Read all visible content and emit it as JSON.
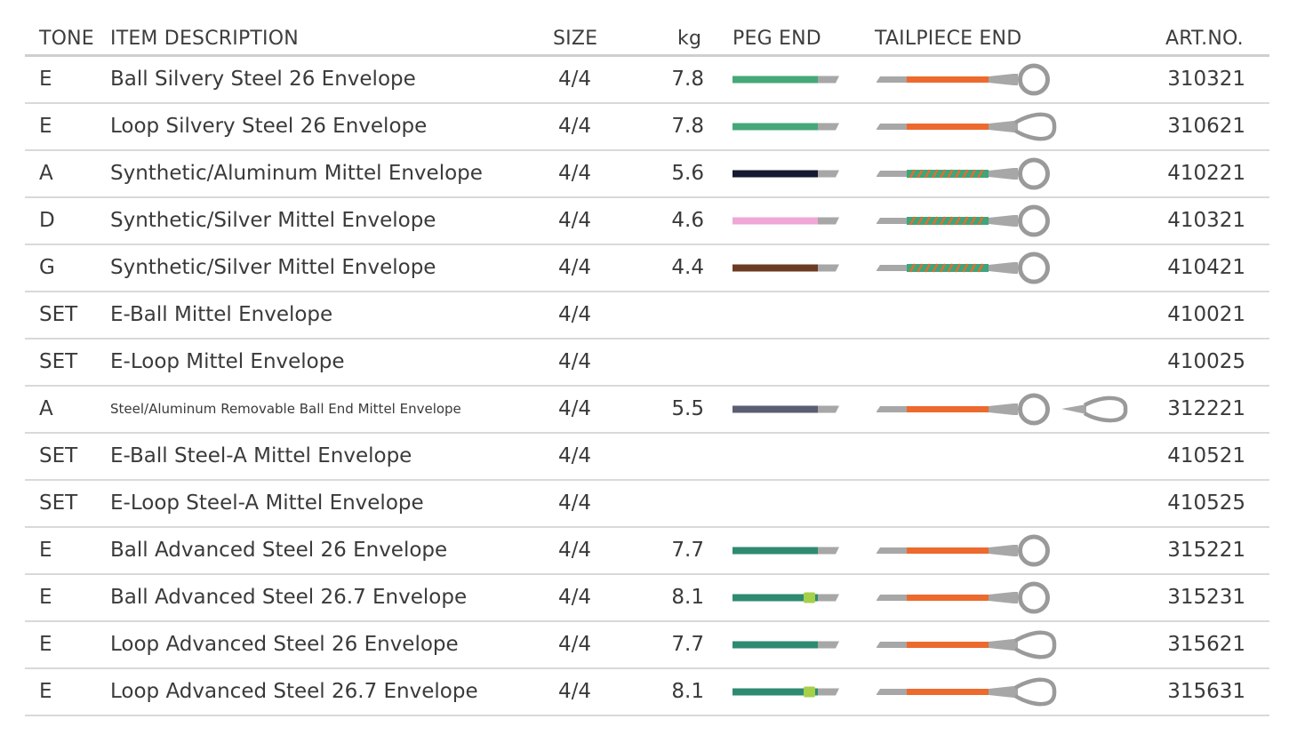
{
  "header": {
    "tone": "TONE",
    "description": "ITEM DESCRIPTION",
    "size": "SIZE",
    "kg": "kg",
    "peg_end": "PEG END",
    "tailpiece_end": "TAILPIECE END",
    "art_no": "ART.NO."
  },
  "colors": {
    "orange": "#ec6a2d",
    "wire_gray": "#a7a7a7",
    "ring_gray": "#9a9a9a",
    "winding_green": "#3fa57a",
    "rule_gray": "#d9d9d9"
  },
  "rows": [
    {
      "tone": "E",
      "description": "Ball Silvery Steel 26 Envelope",
      "size": "4/4",
      "kg": "7.8",
      "art": "310321",
      "peg_color": "#45a878",
      "tail": "ball",
      "wound": false
    },
    {
      "tone": "E",
      "description": "Loop Silvery Steel 26 Envelope",
      "size": "4/4",
      "kg": "7.8",
      "art": "310621",
      "peg_color": "#45a878",
      "tail": "loop",
      "wound": false
    },
    {
      "tone": "A",
      "description": "Synthetic/Aluminum Mittel Envelope",
      "size": "4/4",
      "kg": "5.6",
      "art": "410221",
      "peg_color": "#161a30",
      "tail": "ball",
      "wound": true
    },
    {
      "tone": "D",
      "description": "Synthetic/Silver Mittel Envelope",
      "size": "4/4",
      "kg": "4.6",
      "art": "410321",
      "peg_color": "#efa7d6",
      "tail": "ball",
      "wound": true
    },
    {
      "tone": "G",
      "description": "Synthetic/Silver Mittel Envelope",
      "size": "4/4",
      "kg": "4.4",
      "art": "410421",
      "peg_color": "#6c3b24",
      "tail": "ball",
      "wound": true
    },
    {
      "tone": "SET",
      "description": "E-Ball Mittel Envelope",
      "size": "4/4",
      "kg": "",
      "art": "410021",
      "peg_color": "",
      "tail": "none",
      "wound": false
    },
    {
      "tone": "SET",
      "description": "E-Loop Mittel Envelope",
      "size": "4/4",
      "kg": "",
      "art": "410025",
      "peg_color": "",
      "tail": "none",
      "wound": false
    },
    {
      "tone": "A",
      "description": "Steel/Aluminum Removable Ball End Mittel Envelope",
      "size": "4/4",
      "kg": "5.5",
      "art": "312221",
      "peg_color": "#5b5e72",
      "tail": "ball+loop",
      "wound": false,
      "small": true
    },
    {
      "tone": "SET",
      "description": "E-Ball Steel-A Mittel Envelope",
      "size": "4/4",
      "kg": "",
      "art": "410521",
      "peg_color": "",
      "tail": "none",
      "wound": false
    },
    {
      "tone": "SET",
      "description": "E-Loop Steel-A Mittel Envelope",
      "size": "4/4",
      "kg": "",
      "art": "410525",
      "peg_color": "",
      "tail": "none",
      "wound": false
    },
    {
      "tone": "E",
      "description": "Ball Advanced Steel 26 Envelope",
      "size": "4/4",
      "kg": "7.7",
      "art": "315221",
      "peg_color": "#2f8a72",
      "tail": "ball",
      "wound": false
    },
    {
      "tone": "E",
      "description": "Ball Advanced Steel 26.7 Envelope",
      "size": "4/4",
      "kg": "8.1",
      "art": "315231",
      "peg_color": "#2f8a72",
      "tail": "ball",
      "wound": false,
      "marker": "#a6cf4a"
    },
    {
      "tone": "E",
      "description": "Loop Advanced Steel 26 Envelope",
      "size": "4/4",
      "kg": "7.7",
      "art": "315621",
      "peg_color": "#2f8a72",
      "tail": "loop",
      "wound": false
    },
    {
      "tone": "E",
      "description": "Loop Advanced Steel 26.7 Envelope",
      "size": "4/4",
      "kg": "8.1",
      "art": "315631",
      "peg_color": "#2f8a72",
      "tail": "loop",
      "wound": false,
      "marker": "#a6cf4a"
    }
  ]
}
